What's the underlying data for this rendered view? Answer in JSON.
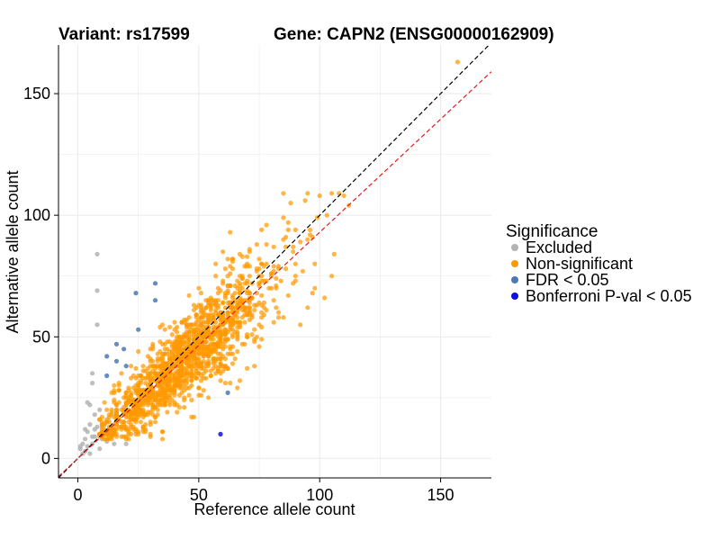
{
  "colors": {
    "excluded": "#b3b3b3",
    "non_significant": "#ff9900",
    "fdr": "#4a79b4",
    "bonferroni": "#1010e0",
    "grid": "#ebebeb",
    "identity_line": "#000000",
    "fit_line": "#e41a1c"
  },
  "chart_data": {
    "type": "scatter",
    "title_left": "Variant: rs17599",
    "title_right": "Gene: CAPN2 (ENSG00000162909)",
    "xlabel": "Reference allele count",
    "ylabel": "Alternative allele count",
    "xlim": [
      -8,
      171
    ],
    "ylim": [
      -8,
      170
    ],
    "x_ticks": [
      0,
      50,
      100,
      150
    ],
    "y_ticks": [
      0,
      50,
      100,
      150
    ],
    "grid": true,
    "legend": {
      "title": "Significance",
      "placement": "right",
      "entries": [
        {
          "label": "Excluded",
          "color_key": "excluded"
        },
        {
          "label": "Non-significant",
          "color_key": "non_significant"
        },
        {
          "label": "FDR < 0.05",
          "color_key": "fdr"
        },
        {
          "label": "Bonferroni P-val < 0.05",
          "color_key": "bonferroni"
        }
      ]
    },
    "reference_lines": [
      {
        "name": "identity",
        "slope": 1.0,
        "intercept": 0,
        "style": "dashed",
        "color_key": "identity_line"
      },
      {
        "name": "fit",
        "slope": 0.93,
        "intercept": 0,
        "style": "dashed",
        "color_key": "fit_line"
      }
    ],
    "series": [
      {
        "key": "excluded",
        "color_key": "excluded",
        "points": [
          [
            8,
            84
          ],
          [
            8,
            69
          ],
          [
            8,
            55
          ],
          [
            6,
            35
          ],
          [
            6,
            31
          ],
          [
            4,
            23
          ],
          [
            5,
            22
          ],
          [
            7,
            18
          ],
          [
            5,
            14
          ],
          [
            8,
            13
          ],
          [
            7,
            12
          ],
          [
            4,
            11
          ],
          [
            9,
            10
          ],
          [
            6,
            9
          ],
          [
            3,
            8
          ],
          [
            10,
            8
          ],
          [
            2,
            6
          ],
          [
            6,
            6
          ],
          [
            12,
            7
          ],
          [
            1,
            5
          ],
          [
            4,
            5
          ],
          [
            15,
            6
          ],
          [
            20,
            6
          ],
          [
            3,
            3
          ],
          [
            9,
            4
          ],
          [
            2,
            2
          ],
          [
            5,
            2
          ],
          [
            11,
            14
          ],
          [
            12,
            15
          ],
          [
            10,
            11
          ],
          [
            7,
            9
          ],
          [
            13,
            10
          ],
          [
            3,
            12
          ],
          [
            9,
            20
          ],
          [
            1,
            4
          ]
        ]
      },
      {
        "key": "fdr",
        "color_key": "fdr",
        "points": [
          [
            32,
            72
          ],
          [
            24,
            68
          ],
          [
            32,
            65
          ],
          [
            25,
            53
          ],
          [
            16,
            47
          ],
          [
            19,
            45
          ],
          [
            12,
            42
          ],
          [
            16,
            40
          ],
          [
            20,
            38
          ],
          [
            12,
            34
          ],
          [
            62,
            27
          ]
        ]
      },
      {
        "key": "bonferroni",
        "color_key": "bonferroni",
        "points": [
          [
            59,
            10
          ]
        ]
      },
      {
        "key": "non_significant",
        "color_key": "non_significant",
        "generated": {
          "n": 1500,
          "mean_x": 44,
          "sd_x": 18,
          "slope": 0.92,
          "noise_sd": 7.5
        },
        "points": [
          [
            157,
            163
          ],
          [
            112,
            104
          ],
          [
            105,
            109
          ],
          [
            108,
            109
          ],
          [
            95,
            109
          ],
          [
            100,
            108
          ],
          [
            110,
            108
          ],
          [
            88,
            105
          ],
          [
            103,
            100
          ],
          [
            99,
            99
          ],
          [
            85,
            90
          ],
          [
            96,
            92
          ],
          [
            78,
            80
          ],
          [
            75,
            78
          ],
          [
            80,
            75
          ],
          [
            90,
            80
          ],
          [
            93,
            77
          ],
          [
            105,
            75
          ],
          [
            98,
            70
          ],
          [
            97,
            68
          ],
          [
            102,
            66
          ],
          [
            95,
            62
          ],
          [
            83,
            60
          ],
          [
            60,
            85
          ],
          [
            62,
            82
          ],
          [
            92,
            55
          ],
          [
            85,
            58
          ],
          [
            75,
            55
          ],
          [
            70,
            50
          ],
          [
            82,
            62
          ],
          [
            15,
            30
          ],
          [
            18,
            35
          ],
          [
            22,
            38
          ],
          [
            25,
            44
          ],
          [
            12,
            20
          ],
          [
            10,
            14
          ],
          [
            14,
            18
          ],
          [
            20,
            22
          ],
          [
            30,
            45
          ],
          [
            35,
            55
          ]
        ]
      }
    ]
  }
}
